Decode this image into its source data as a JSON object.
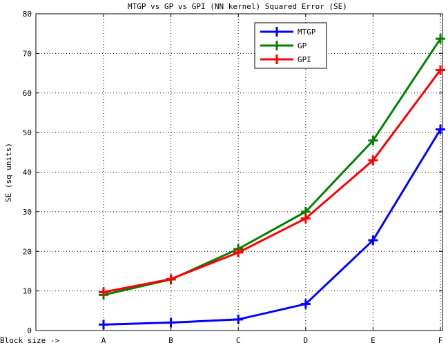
{
  "chart_data": {
    "type": "line",
    "title": "MTGP vs GP vs GPI (NN kernel) Squared Error (SE)",
    "ylabel": "SE (sq units)",
    "xlabel_prefix": "Block size ->",
    "categories": [
      "A",
      "B",
      "C",
      "D",
      "E",
      "F"
    ],
    "ylim": [
      0,
      80
    ],
    "yticks": [
      0,
      10,
      20,
      30,
      40,
      50,
      60,
      70,
      80
    ],
    "grid": true,
    "legend_position": "top-right",
    "series": [
      {
        "name": "MTGP",
        "color": "#0000ff",
        "values": [
          1.5,
          2.0,
          2.8,
          6.7,
          22.8,
          50.8
        ]
      },
      {
        "name": "GP",
        "color": "#008000",
        "values": [
          9.0,
          12.9,
          20.6,
          30.0,
          48.0,
          73.7
        ]
      },
      {
        "name": "GPI",
        "color": "#ff0000",
        "values": [
          9.7,
          13.0,
          19.7,
          28.3,
          43.0,
          65.8
        ]
      }
    ]
  }
}
